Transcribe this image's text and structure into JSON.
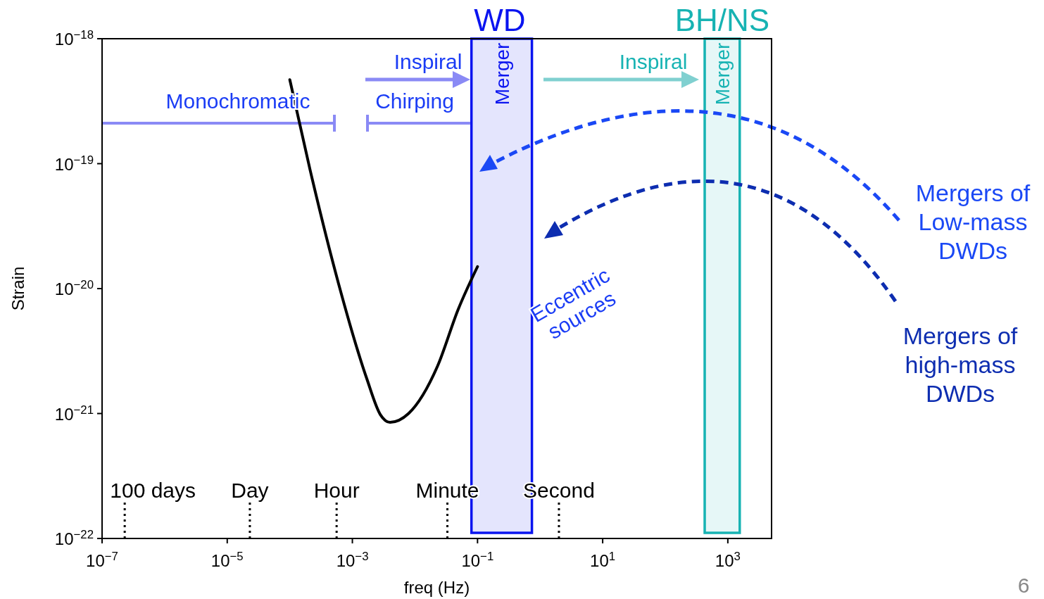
{
  "chart_data": {
    "type": "line",
    "xlabel": "freq (Hz)",
    "ylabel": "Strain",
    "log": "xy",
    "xlim": [
      1e-07,
      5000
    ],
    "ylim": [
      1e-22,
      1e-18
    ],
    "xticks": [
      {
        "value": 1e-07,
        "label": "10$^{−7}$"
      },
      {
        "value": 1e-05,
        "label": "10$^{−5}$"
      },
      {
        "value": 0.001,
        "label": "10$^{−3}$"
      },
      {
        "value": 0.1,
        "label": "10$^{−1}$"
      },
      {
        "value": 10,
        "label": "10$^{1}$"
      },
      {
        "value": 1000,
        "label": "10$^{3}$"
      }
    ],
    "yticks": [
      {
        "value": 1e-22,
        "label": "10$^{−22}$"
      },
      {
        "value": 1e-21,
        "label": "10$^{−21}$"
      },
      {
        "value": 1e-20,
        "label": "10$^{−20}$"
      },
      {
        "value": 1e-19,
        "label": "10$^{−19}$"
      },
      {
        "value": 1e-18,
        "label": "10$^{−18}$"
      }
    ],
    "series": [
      {
        "color": "#000000",
        "x": [
          0.0001,
          0.00021,
          0.0006,
          0.0017,
          0.0028,
          0.004,
          0.0079,
          0.023,
          0.049,
          0.1
        ],
        "values": [
          4.7e-19,
          9e-20,
          1.1e-20,
          1.9e-21,
          9.8e-22,
          8.5e-22,
          1e-21,
          2.4e-21,
          6.8e-21,
          1.5e-20
        ]
      }
    ],
    "bands": [
      {
        "axis": "x",
        "from": 0.08,
        "to": 0.74,
        "label": "Merger",
        "color": "#0a14f0"
      },
      {
        "axis": "x",
        "from": 427,
        "to": 1550,
        "label": "Merger",
        "color": "#17b3b3"
      }
    ],
    "ref_lines": [
      {
        "axis": "x",
        "value": 2.3e-07,
        "label": "100 days",
        "line_style": "dotted",
        "color": "#000000"
      },
      {
        "axis": "x",
        "value": 2.3e-05,
        "label": "Day",
        "line_style": "dotted",
        "color": "#000000"
      },
      {
        "axis": "x",
        "value": 0.00056,
        "label": "Hour",
        "line_style": "dotted",
        "color": "#000000"
      },
      {
        "axis": "x",
        "value": 0.033,
        "label": "Minute",
        "line_style": "dotted",
        "color": "#000000"
      },
      {
        "axis": "x",
        "value": 2,
        "label": "Second",
        "line_style": "dotted",
        "color": "#000000"
      }
    ],
    "annotations": [
      "WD",
      "BH/NS",
      "Inspiral",
      "Inspiral",
      "Monochromatic",
      "Chirping",
      "Eccentric\nsources",
      "Mergers of\nLow-mass\nDWDs",
      "Mergers of\nhigh-mass\nDWDs",
      "6"
    ]
  }
}
